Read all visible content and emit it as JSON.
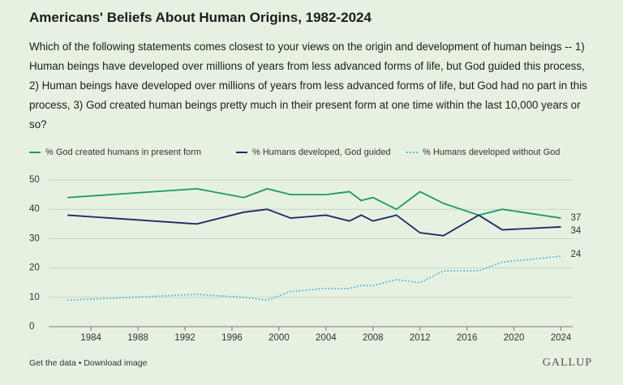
{
  "chart_data": {
    "type": "line",
    "title": "Americans' Beliefs About Human Origins, 1982-2024",
    "subtitle": "Which of the following statements comes closest to your views on the origin and development of human beings -- 1) Human beings have developed over millions of years from less advanced forms of life, but God guided this process, 2) Human beings have developed over millions of years from less advanced forms of life, but God had no part in this process, 3) God created human beings pretty much in their present form at one time within the last 10,000 years or so?",
    "x": [
      1982,
      1993,
      1997,
      1999,
      2001,
      2004,
      2006,
      2007,
      2008,
      2010,
      2012,
      2014,
      2017,
      2019,
      2024
    ],
    "series": [
      {
        "name": "% God created humans in present form",
        "color": "#1e9a5b",
        "style": "solid",
        "values": [
          44,
          47,
          44,
          47,
          45,
          45,
          46,
          43,
          44,
          40,
          46,
          42,
          38,
          40,
          37
        ]
      },
      {
        "name": "% Humans developed, God guided",
        "color": "#1a2a66",
        "style": "solid",
        "values": [
          38,
          35,
          39,
          40,
          37,
          38,
          36,
          38,
          36,
          38,
          32,
          31,
          38,
          33,
          34
        ]
      },
      {
        "name": "% Humans developed without God",
        "color": "#2aa3d6",
        "style": "dotted",
        "values": [
          9,
          11,
          10,
          9,
          12,
          13,
          13,
          14,
          14,
          16,
          15,
          19,
          19,
          22,
          24
        ]
      }
    ],
    "xlim": [
      1980.4,
      2025
    ],
    "xticks": [
      1984,
      1988,
      1992,
      1996,
      2000,
      2004,
      2008,
      2012,
      2016,
      2020,
      2024
    ],
    "ylim": [
      0,
      50
    ],
    "yticks": [
      0,
      10,
      20,
      30,
      40,
      50
    ],
    "grid": true,
    "end_labels": true,
    "footer_left": "Get the data • Download image",
    "footer_right": "GALLUP"
  }
}
